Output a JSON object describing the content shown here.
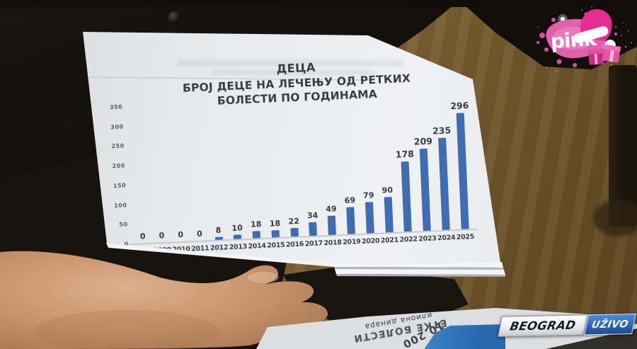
{
  "channel_logo": {
    "text": "pink"
  },
  "live_banner": {
    "location": "BEOGRAD",
    "live": "UŽIVO",
    "blue": "#2a62b4"
  },
  "chart_data": {
    "type": "bar",
    "title": "ДЕЦА",
    "subtitle": "БРОЈ ДЕЦЕ НА ЛЕЧЕЊУ ОД РЕТКИХ БОЛЕСТИ ПО ГОДИНАМА",
    "categories": [
      "2008",
      "2009",
      "2010",
      "2011",
      "2012",
      "2013",
      "2014",
      "2015",
      "2016",
      "2017",
      "2018",
      "2019",
      "2020",
      "2021",
      "2022",
      "2023",
      "2024",
      "2025"
    ],
    "values": [
      0,
      0,
      0,
      0,
      8,
      10,
      18,
      18,
      22,
      34,
      49,
      69,
      79,
      90,
      178,
      209,
      235,
      296
    ],
    "y_ticks": [
      0,
      50,
      100,
      150,
      200,
      250,
      300,
      350
    ],
    "ylim": [
      0,
      350
    ],
    "bar_color": "#3f6db4",
    "label_color": "#3a3d42",
    "grid": false,
    "legend": "none"
  },
  "foreground_document": {
    "text_fragment_1": "ЕТКЕ БОЛЕСТИ",
    "text_fragment_2": "илиона динара",
    "amount": "10.200"
  }
}
